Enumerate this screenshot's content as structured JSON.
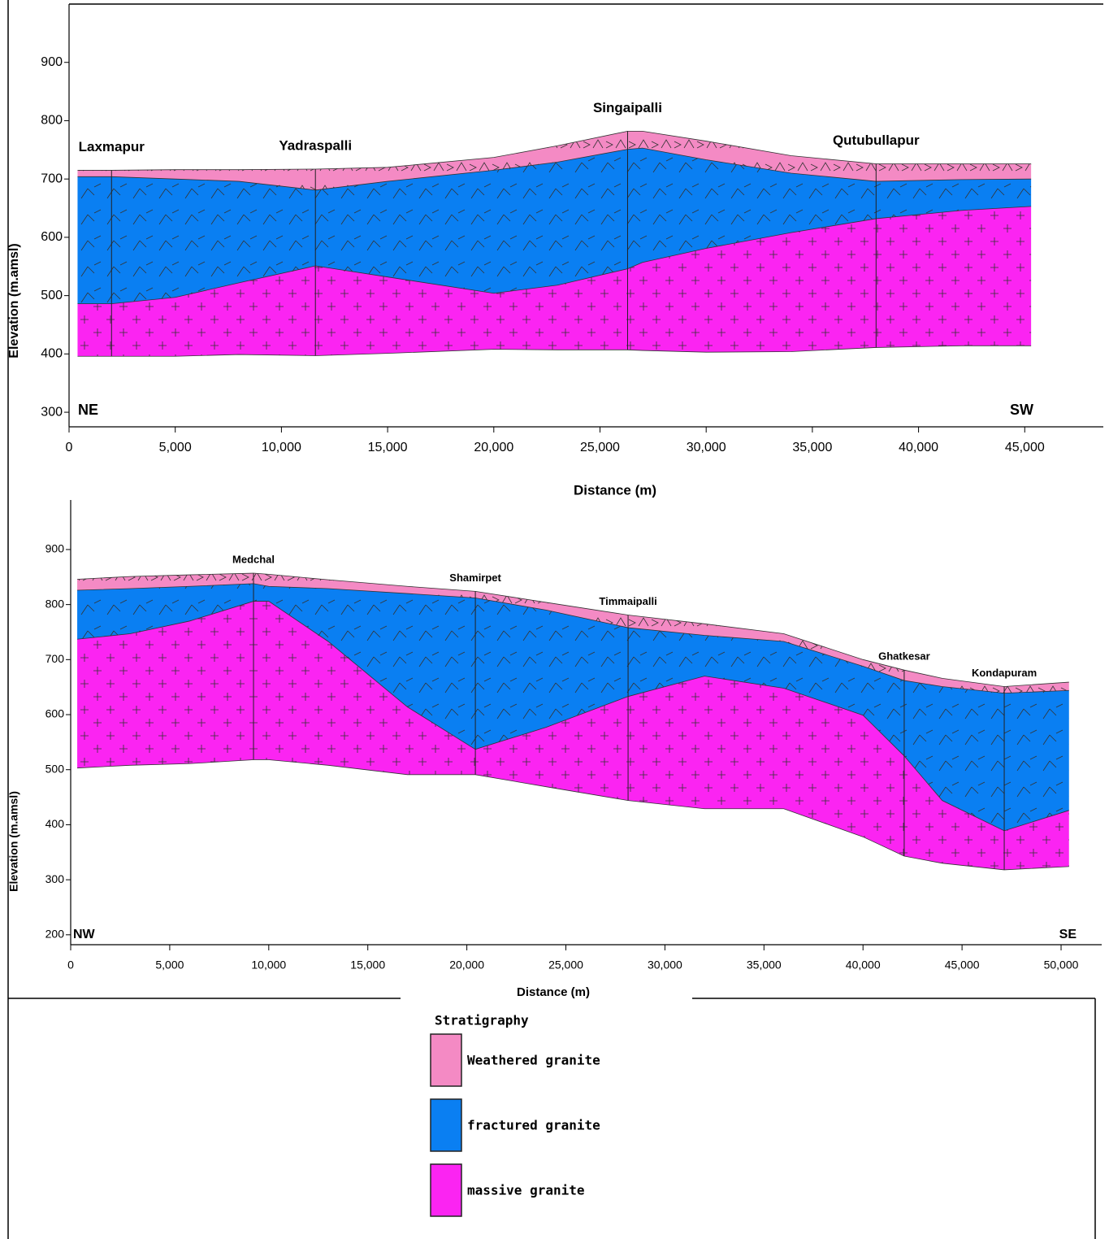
{
  "charts": [
    {
      "type": "area",
      "xlabel": "Distance (m)",
      "ylabel": "Elevation (m.amsl)",
      "xlim": [
        0,
        48700
      ],
      "ylim": [
        275,
        1000
      ],
      "xticks": [
        0,
        {
          "value": 5000,
          "label": "5,000"
        },
        {
          "value": 10000,
          "label": "10,000"
        },
        {
          "value": 15000,
          "label": "15,000"
        },
        {
          "value": 20000,
          "label": "20,000"
        },
        {
          "value": 25000,
          "label": "25,000"
        },
        {
          "value": 30000,
          "label": "30,000"
        },
        {
          "value": 35000,
          "label": "35,000"
        },
        {
          "value": 40000,
          "label": "40,000"
        },
        {
          "value": 45000,
          "label": "45,000"
        }
      ],
      "yticks": [
        300,
        400,
        500,
        600,
        700,
        800,
        900
      ],
      "corner_labels": [
        "NE",
        "SW"
      ],
      "x": [
        400,
        2000,
        5000,
        8000,
        11600,
        15000,
        20000,
        23000,
        26300,
        27000,
        30000,
        34000,
        38000,
        42000,
        45300
      ],
      "series": [
        {
          "values": [
            715,
            715,
            716,
            716,
            717,
            720,
            737,
            757,
            782,
            782,
            765,
            740,
            726,
            726,
            726
          ]
        },
        {
          "values": [
            704,
            704,
            700,
            696,
            681,
            696,
            715,
            729,
            751,
            753,
            733,
            710,
            696,
            699,
            700
          ]
        },
        {
          "values": [
            486,
            486,
            497,
            522,
            551,
            532,
            504,
            518,
            546,
            557,
            581,
            608,
            632,
            646,
            653
          ]
        },
        {
          "values": [
            396,
            396,
            396,
            399,
            397,
            401,
            408,
            407,
            407,
            406,
            403,
            404,
            411,
            414,
            414
          ]
        }
      ],
      "wells": [
        {
          "label": "Laxmapur",
          "x": 2000
        },
        {
          "label": "Yadraspalli",
          "x": 11600
        },
        {
          "label": "Singaipalli",
          "x": 26300
        },
        {
          "label": "Qutubullapur",
          "x": 38000
        }
      ]
    },
    {
      "type": "area",
      "xlabel": "Distance (m)",
      "ylabel": "Elevation (m.amsl)",
      "xlim": [
        0,
        52050
      ],
      "ylim": [
        182,
        990
      ],
      "xticks": [
        0,
        {
          "value": 5000,
          "label": "5,000"
        },
        {
          "value": 10000,
          "label": "10,000"
        },
        {
          "value": 15000,
          "label": "15,000"
        },
        {
          "value": 20000,
          "label": "20,000"
        },
        {
          "value": 25000,
          "label": "25,000"
        },
        {
          "value": 30000,
          "label": "30,000"
        },
        {
          "value": 35000,
          "label": "35,000"
        },
        {
          "value": 40000,
          "label": "40,000"
        },
        {
          "value": 45000,
          "label": "45,000"
        },
        {
          "value": 50000,
          "label": "50,000"
        }
      ],
      "yticks": [
        200,
        300,
        400,
        500,
        600,
        700,
        800,
        900
      ],
      "corner_labels": [
        "NW",
        "SE"
      ],
      "x": [
        330,
        3000,
        6000,
        9230,
        10000,
        13000,
        17000,
        20430,
        24000,
        28140,
        32000,
        36000,
        40000,
        42080,
        44000,
        47130,
        50400
      ],
      "series": [
        {
          "values": [
            846,
            851,
            854,
            857,
            855,
            845,
            833,
            824,
            804,
            781,
            765,
            747,
            700,
            681,
            666,
            651,
            659
          ]
        },
        {
          "values": [
            826,
            829,
            833,
            838,
            833,
            829,
            820,
            812,
            790,
            758,
            744,
            733,
            688,
            662,
            651,
            639,
            644
          ]
        },
        {
          "values": [
            737,
            747,
            770,
            806,
            806,
            733,
            614,
            537,
            577,
            633,
            670,
            648,
            599,
            525,
            444,
            389,
            426
          ]
        },
        {
          "values": [
            503,
            508,
            511,
            518,
            518,
            508,
            491,
            491,
            469,
            444,
            429,
            429,
            378,
            343,
            330,
            318,
            324
          ]
        }
      ],
      "wells": [
        {
          "label": "Medchal",
          "x": 9230
        },
        {
          "label": "Shamirpet",
          "x": 20430
        },
        {
          "label": "Timmaipalli",
          "x": 28140
        },
        {
          "label": "Ghatkesar",
          "x": 42080
        },
        {
          "label": "Kondapuram",
          "x": 47130
        }
      ]
    }
  ],
  "legend": {
    "title": "Stratigraphy",
    "items": [
      {
        "name": "Weathered granite",
        "color": "#f48ac4"
      },
      {
        "name": "fractured granite",
        "color": "#0a7ff2"
      },
      {
        "name": "massive granite",
        "color": "#fb24f2"
      }
    ]
  }
}
